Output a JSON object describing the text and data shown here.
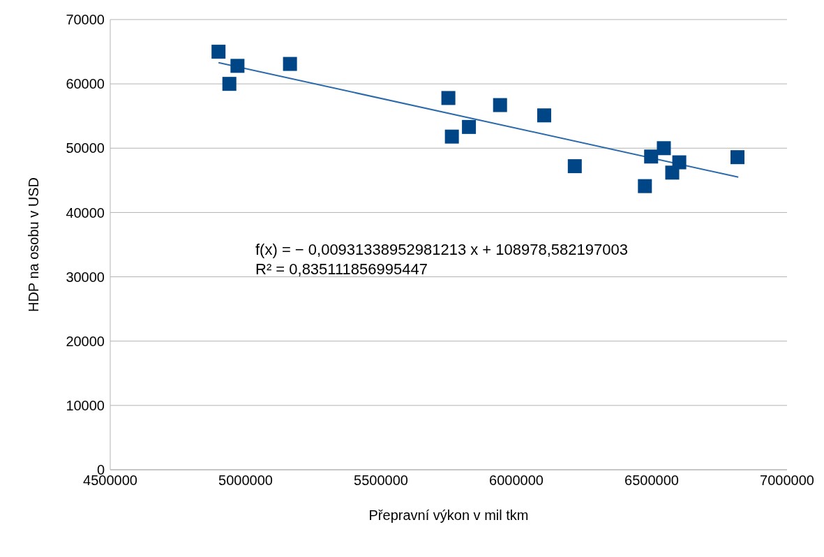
{
  "chart_data": {
    "type": "scatter",
    "xlabel": "Přepravní výkon v mil tkm",
    "ylabel": "HDP na osobu v USD",
    "xlim": [
      4500000,
      7000000
    ],
    "xticks": [
      4500000,
      5000000,
      5500000,
      6000000,
      6500000,
      7000000
    ],
    "ylim": [
      0,
      70000
    ],
    "yticks": [
      0,
      10000,
      20000,
      30000,
      40000,
      50000,
      60000,
      70000
    ],
    "grid": "y",
    "marker": "square",
    "legend": false,
    "annotations": [
      "f(x) = − 0,00931338952981213 x + 108978,582197003",
      "R² = 0,835111856995447"
    ],
    "series": [
      {
        "type": "scatter",
        "color": "#004586",
        "x": [
          4900000,
          4940000,
          4970000,
          5164000,
          5749000,
          5762000,
          5825000,
          5940000,
          6103000,
          6216000,
          6475000,
          6498000,
          6545000,
          6576000,
          6602000,
          6817000
        ],
        "values": [
          65000,
          60000,
          62800,
          63100,
          57800,
          51800,
          53300,
          56700,
          55100,
          47200,
          44100,
          48700,
          50000,
          46200,
          47800,
          48600
        ]
      },
      {
        "type": "line",
        "color": "#2a6aab",
        "x": [
          4900000,
          6820000
        ],
        "values": [
          63300,
          45500
        ],
        "line_style": "solid",
        "marker": "none"
      }
    ]
  }
}
